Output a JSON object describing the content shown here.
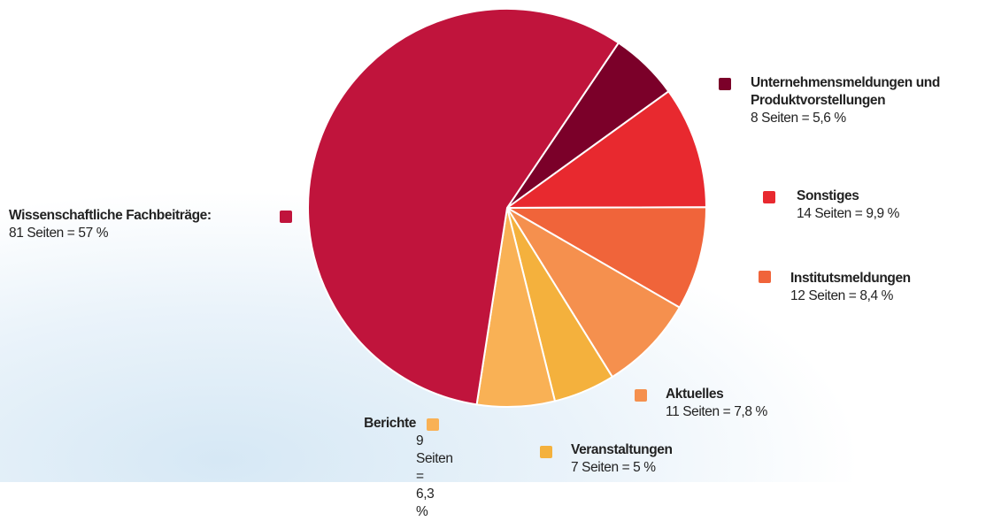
{
  "chart_data": {
    "type": "pie",
    "categories": [
      "Unternehmensmeldungen und Produktvorstellungen",
      "Sonstiges",
      "Institutsmeldungen",
      "Aktuelles",
      "Veranstaltungen",
      "Berichte",
      "Wissenschaftliche Fachbeiträge:"
    ],
    "values": [
      5.6,
      9.9,
      8.4,
      7.8,
      5,
      6.3,
      57
    ],
    "value_labels": [
      "8 Seiten = 5,6 %",
      "14 Seiten = 9,9 %",
      "12 Seiten = 8,4 %",
      "11 Seiten = 7,8 %",
      "7 Seiten = 5 %",
      "9 Seiten = 6,3 %",
      "81 Seiten = 57 %"
    ],
    "colors": [
      "#7b0029",
      "#e8292f",
      "#f0643a",
      "#f5904e",
      "#f4b13d",
      "#f9b155",
      "#c0143c"
    ]
  }
}
